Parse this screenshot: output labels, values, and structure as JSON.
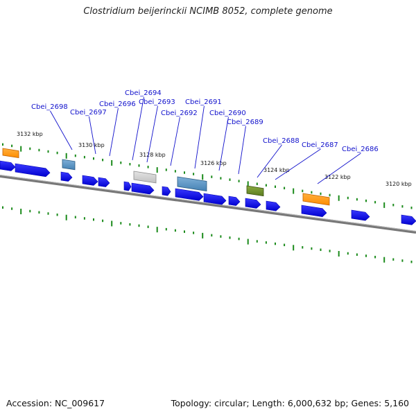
{
  "title": "Clostridium beijerinckii NCIMB 8052, complete genome",
  "footer": {
    "accession": "Accession: NC_009617",
    "topology": "Topology: circular; Length: 6,000,632 bp; Genes: 5,160"
  },
  "colors": {
    "cds_forward": "#0000ee",
    "cds_reverse": "#0000ee",
    "tick": "#1a8a1a",
    "label": "#1111cc",
    "backbone": "#777777",
    "highlight_orange": "#ff8c00",
    "highlight_steelblue": "#4682b4",
    "highlight_gray": "#c0c0c0",
    "highlight_olive": "#5a7a1e"
  },
  "scale_labels": [
    "3132 kbp",
    "3130 kbp",
    "3128 kbp",
    "3126 kbp",
    "3124 kbp",
    "3122 kbp",
    "3120 kbp"
  ],
  "gene_labels": [
    "Cbei_2698",
    "Cbei_2697",
    "Cbei_2696",
    "Cbei_2694",
    "Cbei_2693",
    "Cbei_2692",
    "Cbei_2691",
    "Cbei_2690",
    "Cbei_2689",
    "Cbei_2688",
    "Cbei_2687",
    "Cbei_2686"
  ]
}
